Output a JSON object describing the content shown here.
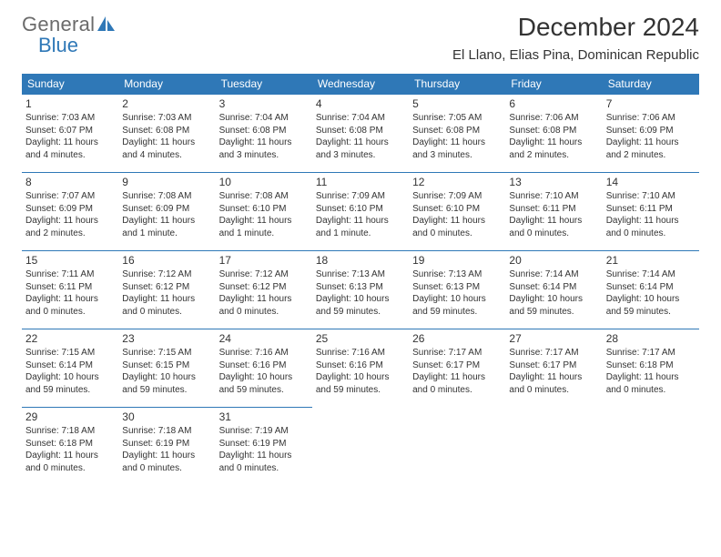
{
  "logo": {
    "general": "General",
    "blue": "Blue"
  },
  "title": "December 2024",
  "location": "El Llano, Elias Pina, Dominican Republic",
  "colors": {
    "header_bg": "#2f78b7",
    "header_text": "#ffffff",
    "border": "#2f78b7",
    "logo_gray": "#6b6b6b",
    "logo_blue": "#2f78b7",
    "text": "#333333",
    "background": "#ffffff"
  },
  "weekdays": [
    "Sunday",
    "Monday",
    "Tuesday",
    "Wednesday",
    "Thursday",
    "Friday",
    "Saturday"
  ],
  "weeks": [
    [
      {
        "n": 1,
        "sr": "7:03 AM",
        "ss": "6:07 PM",
        "dl": "11 hours and 4 minutes."
      },
      {
        "n": 2,
        "sr": "7:03 AM",
        "ss": "6:08 PM",
        "dl": "11 hours and 4 minutes."
      },
      {
        "n": 3,
        "sr": "7:04 AM",
        "ss": "6:08 PM",
        "dl": "11 hours and 3 minutes."
      },
      {
        "n": 4,
        "sr": "7:04 AM",
        "ss": "6:08 PM",
        "dl": "11 hours and 3 minutes."
      },
      {
        "n": 5,
        "sr": "7:05 AM",
        "ss": "6:08 PM",
        "dl": "11 hours and 3 minutes."
      },
      {
        "n": 6,
        "sr": "7:06 AM",
        "ss": "6:08 PM",
        "dl": "11 hours and 2 minutes."
      },
      {
        "n": 7,
        "sr": "7:06 AM",
        "ss": "6:09 PM",
        "dl": "11 hours and 2 minutes."
      }
    ],
    [
      {
        "n": 8,
        "sr": "7:07 AM",
        "ss": "6:09 PM",
        "dl": "11 hours and 2 minutes."
      },
      {
        "n": 9,
        "sr": "7:08 AM",
        "ss": "6:09 PM",
        "dl": "11 hours and 1 minute."
      },
      {
        "n": 10,
        "sr": "7:08 AM",
        "ss": "6:10 PM",
        "dl": "11 hours and 1 minute."
      },
      {
        "n": 11,
        "sr": "7:09 AM",
        "ss": "6:10 PM",
        "dl": "11 hours and 1 minute."
      },
      {
        "n": 12,
        "sr": "7:09 AM",
        "ss": "6:10 PM",
        "dl": "11 hours and 0 minutes."
      },
      {
        "n": 13,
        "sr": "7:10 AM",
        "ss": "6:11 PM",
        "dl": "11 hours and 0 minutes."
      },
      {
        "n": 14,
        "sr": "7:10 AM",
        "ss": "6:11 PM",
        "dl": "11 hours and 0 minutes."
      }
    ],
    [
      {
        "n": 15,
        "sr": "7:11 AM",
        "ss": "6:11 PM",
        "dl": "11 hours and 0 minutes."
      },
      {
        "n": 16,
        "sr": "7:12 AM",
        "ss": "6:12 PM",
        "dl": "11 hours and 0 minutes."
      },
      {
        "n": 17,
        "sr": "7:12 AM",
        "ss": "6:12 PM",
        "dl": "11 hours and 0 minutes."
      },
      {
        "n": 18,
        "sr": "7:13 AM",
        "ss": "6:13 PM",
        "dl": "10 hours and 59 minutes."
      },
      {
        "n": 19,
        "sr": "7:13 AM",
        "ss": "6:13 PM",
        "dl": "10 hours and 59 minutes."
      },
      {
        "n": 20,
        "sr": "7:14 AM",
        "ss": "6:14 PM",
        "dl": "10 hours and 59 minutes."
      },
      {
        "n": 21,
        "sr": "7:14 AM",
        "ss": "6:14 PM",
        "dl": "10 hours and 59 minutes."
      }
    ],
    [
      {
        "n": 22,
        "sr": "7:15 AM",
        "ss": "6:14 PM",
        "dl": "10 hours and 59 minutes."
      },
      {
        "n": 23,
        "sr": "7:15 AM",
        "ss": "6:15 PM",
        "dl": "10 hours and 59 minutes."
      },
      {
        "n": 24,
        "sr": "7:16 AM",
        "ss": "6:16 PM",
        "dl": "10 hours and 59 minutes."
      },
      {
        "n": 25,
        "sr": "7:16 AM",
        "ss": "6:16 PM",
        "dl": "10 hours and 59 minutes."
      },
      {
        "n": 26,
        "sr": "7:17 AM",
        "ss": "6:17 PM",
        "dl": "11 hours and 0 minutes."
      },
      {
        "n": 27,
        "sr": "7:17 AM",
        "ss": "6:17 PM",
        "dl": "11 hours and 0 minutes."
      },
      {
        "n": 28,
        "sr": "7:17 AM",
        "ss": "6:18 PM",
        "dl": "11 hours and 0 minutes."
      }
    ],
    [
      {
        "n": 29,
        "sr": "7:18 AM",
        "ss": "6:18 PM",
        "dl": "11 hours and 0 minutes."
      },
      {
        "n": 30,
        "sr": "7:18 AM",
        "ss": "6:19 PM",
        "dl": "11 hours and 0 minutes."
      },
      {
        "n": 31,
        "sr": "7:19 AM",
        "ss": "6:19 PM",
        "dl": "11 hours and 0 minutes."
      },
      null,
      null,
      null,
      null
    ]
  ],
  "labels": {
    "sunrise": "Sunrise:",
    "sunset": "Sunset:",
    "daylight": "Daylight:"
  }
}
